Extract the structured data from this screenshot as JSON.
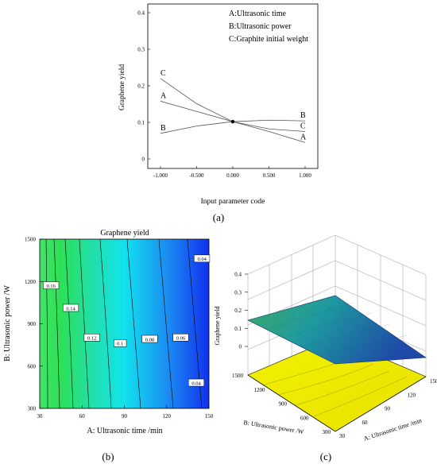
{
  "panel_labels": {
    "a": "(a)",
    "b": "(b)",
    "c": "(c)"
  },
  "chart_data": [
    {
      "type": "line",
      "panel": "(a)",
      "title": "",
      "xlabel": "Input parameter code",
      "ylabel": "Graphene yield",
      "xlim": [
        -1.0,
        1.0
      ],
      "ylim": [
        0,
        0.4
      ],
      "x_ticks": [
        "-1.000",
        "-0.500",
        "0.000",
        "0.500",
        "1.000"
      ],
      "y_ticks": [
        "0",
        "0.1",
        "0.2",
        "0.3",
        "0.4"
      ],
      "legend": [
        "A:Ultrasonic time",
        "B:Ultrasonic power",
        "C:Graphite initial weight"
      ],
      "legend_position": "top-right",
      "center_point": {
        "x": 0.0,
        "y": 0.102
      },
      "series": [
        {
          "name": "A",
          "x": [
            -1.0,
            -0.5,
            0.0,
            0.5,
            1.0
          ],
          "values": [
            0.158,
            0.13,
            0.102,
            0.075,
            0.045
          ],
          "label_start": "A",
          "label_end": "A"
        },
        {
          "name": "B",
          "x": [
            -1.0,
            -0.5,
            0.0,
            0.5,
            1.0
          ],
          "values": [
            0.07,
            0.09,
            0.102,
            0.106,
            0.104
          ],
          "label_start": "B",
          "label_end": "B"
        },
        {
          "name": "C",
          "x": [
            -1.0,
            -0.5,
            0.0,
            0.5,
            1.0
          ],
          "values": [
            0.22,
            0.151,
            0.102,
            0.082,
            0.075
          ],
          "label_start": "C",
          "label_end": "C"
        }
      ]
    },
    {
      "type": "contour",
      "panel": "(b)",
      "title": "Graphene yield",
      "xlabel": "A: Ultrasonic time /min",
      "ylabel": "B: Ultrasonic power /W",
      "xlim": [
        30,
        150
      ],
      "ylim": [
        300,
        1500
      ],
      "x_ticks": [
        "30",
        "60",
        "90",
        "120",
        "150"
      ],
      "y_ticks": [
        "300",
        "600",
        "900",
        "1200",
        "1500"
      ],
      "contour_labels": [
        {
          "text": "0.16",
          "x": 38,
          "y": 1170
        },
        {
          "text": "0.14",
          "x": 52,
          "y": 1010
        },
        {
          "text": "0.12",
          "x": 67,
          "y": 800
        },
        {
          "text": "0.1",
          "x": 87,
          "y": 760
        },
        {
          "text": "0.08",
          "x": 108,
          "y": 790
        },
        {
          "text": "0.06",
          "x": 130,
          "y": 800
        },
        {
          "text": "0.04",
          "x": 145,
          "y": 1360
        },
        {
          "text": "0.04",
          "x": 141,
          "y": 480
        }
      ]
    },
    {
      "type": "surface",
      "panel": "(c)",
      "zlabel": "Graphene yield",
      "xlabel": "A: Ultrasonic time /min",
      "ylabel": "B: Ultrasonic power /W",
      "zlim": [
        0,
        0.4
      ],
      "z_ticks": [
        "0",
        "0.1",
        "0.2",
        "0.3",
        "0.4"
      ],
      "x_ticks": [
        "30",
        "60",
        "90",
        "120",
        "150"
      ],
      "y_ticks": [
        "300",
        "600",
        "900",
        "1200",
        "1500"
      ],
      "surface_corners": [
        {
          "time": 30,
          "power": 1500,
          "yield": 0.13
        },
        {
          "time": 150,
          "power": 1500,
          "yield": 0.035
        },
        {
          "time": 150,
          "power": 300,
          "yield": 0.035
        },
        {
          "time": 30,
          "power": 300,
          "yield": 0.09
        }
      ]
    }
  ]
}
